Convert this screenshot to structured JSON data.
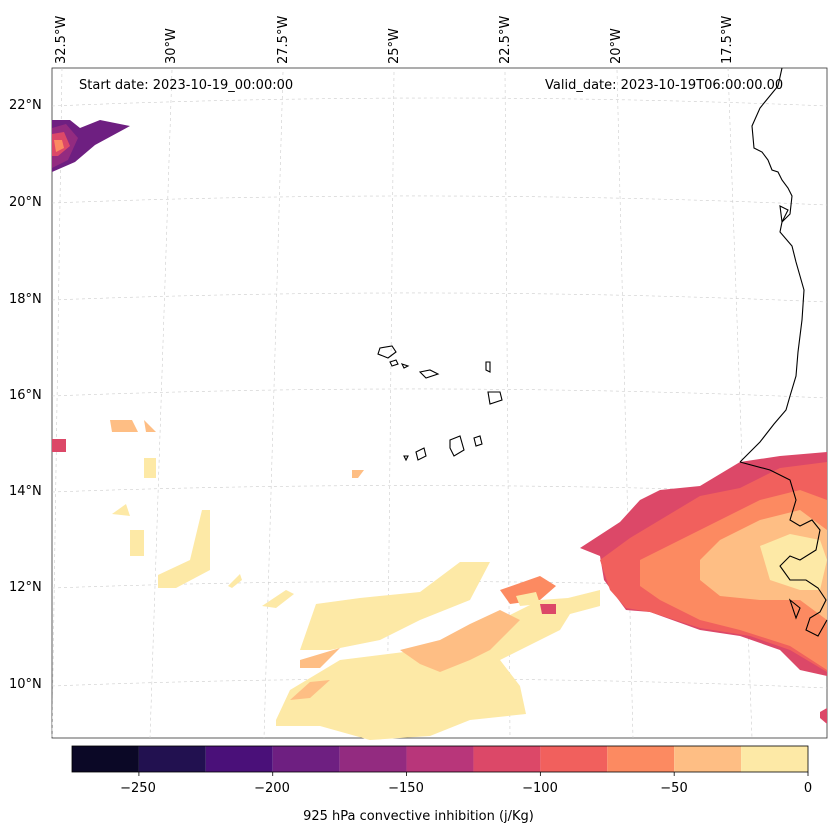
{
  "header": {
    "start_date": "Start date: 2023-10-19_00:00:00",
    "valid_date": "Valid_date: 2023-10-19T06:00:00.00"
  },
  "axes": {
    "lon_labels": [
      "32.5°W",
      "30°W",
      "27.5°W",
      "25°W",
      "22.5°W",
      "20°W",
      "17.5°W"
    ],
    "lat_labels": [
      "22°N",
      "20°N",
      "18°N",
      "16°N",
      "14°N",
      "12°N",
      "10°N"
    ]
  },
  "colorbar": {
    "title": "925 hPa convective inhibition (j/Kg)",
    "tick_labels": [
      "−250",
      "−200",
      "−150",
      "−100",
      "−50",
      "0"
    ],
    "range": [
      -275,
      0
    ],
    "bins": [
      {
        "from": -275,
        "to": -250,
        "color": "#0b0826"
      },
      {
        "from": -250,
        "to": -225,
        "color": "#221150"
      },
      {
        "from": -225,
        "to": -200,
        "color": "#4a1079"
      },
      {
        "from": -200,
        "to": -175,
        "color": "#6e1f81"
      },
      {
        "from": -175,
        "to": -150,
        "color": "#932b80"
      },
      {
        "from": -150,
        "to": -125,
        "color": "#b8367a"
      },
      {
        "from": -125,
        "to": -100,
        "color": "#dc4868"
      },
      {
        "from": -100,
        "to": -75,
        "color": "#f1605d"
      },
      {
        "from": -75,
        "to": -50,
        "color": "#fc8a61"
      },
      {
        "from": -50,
        "to": -25,
        "color": "#febe84"
      },
      {
        "from": -25,
        "to": 0,
        "color": "#fde9a6"
      }
    ]
  }
}
